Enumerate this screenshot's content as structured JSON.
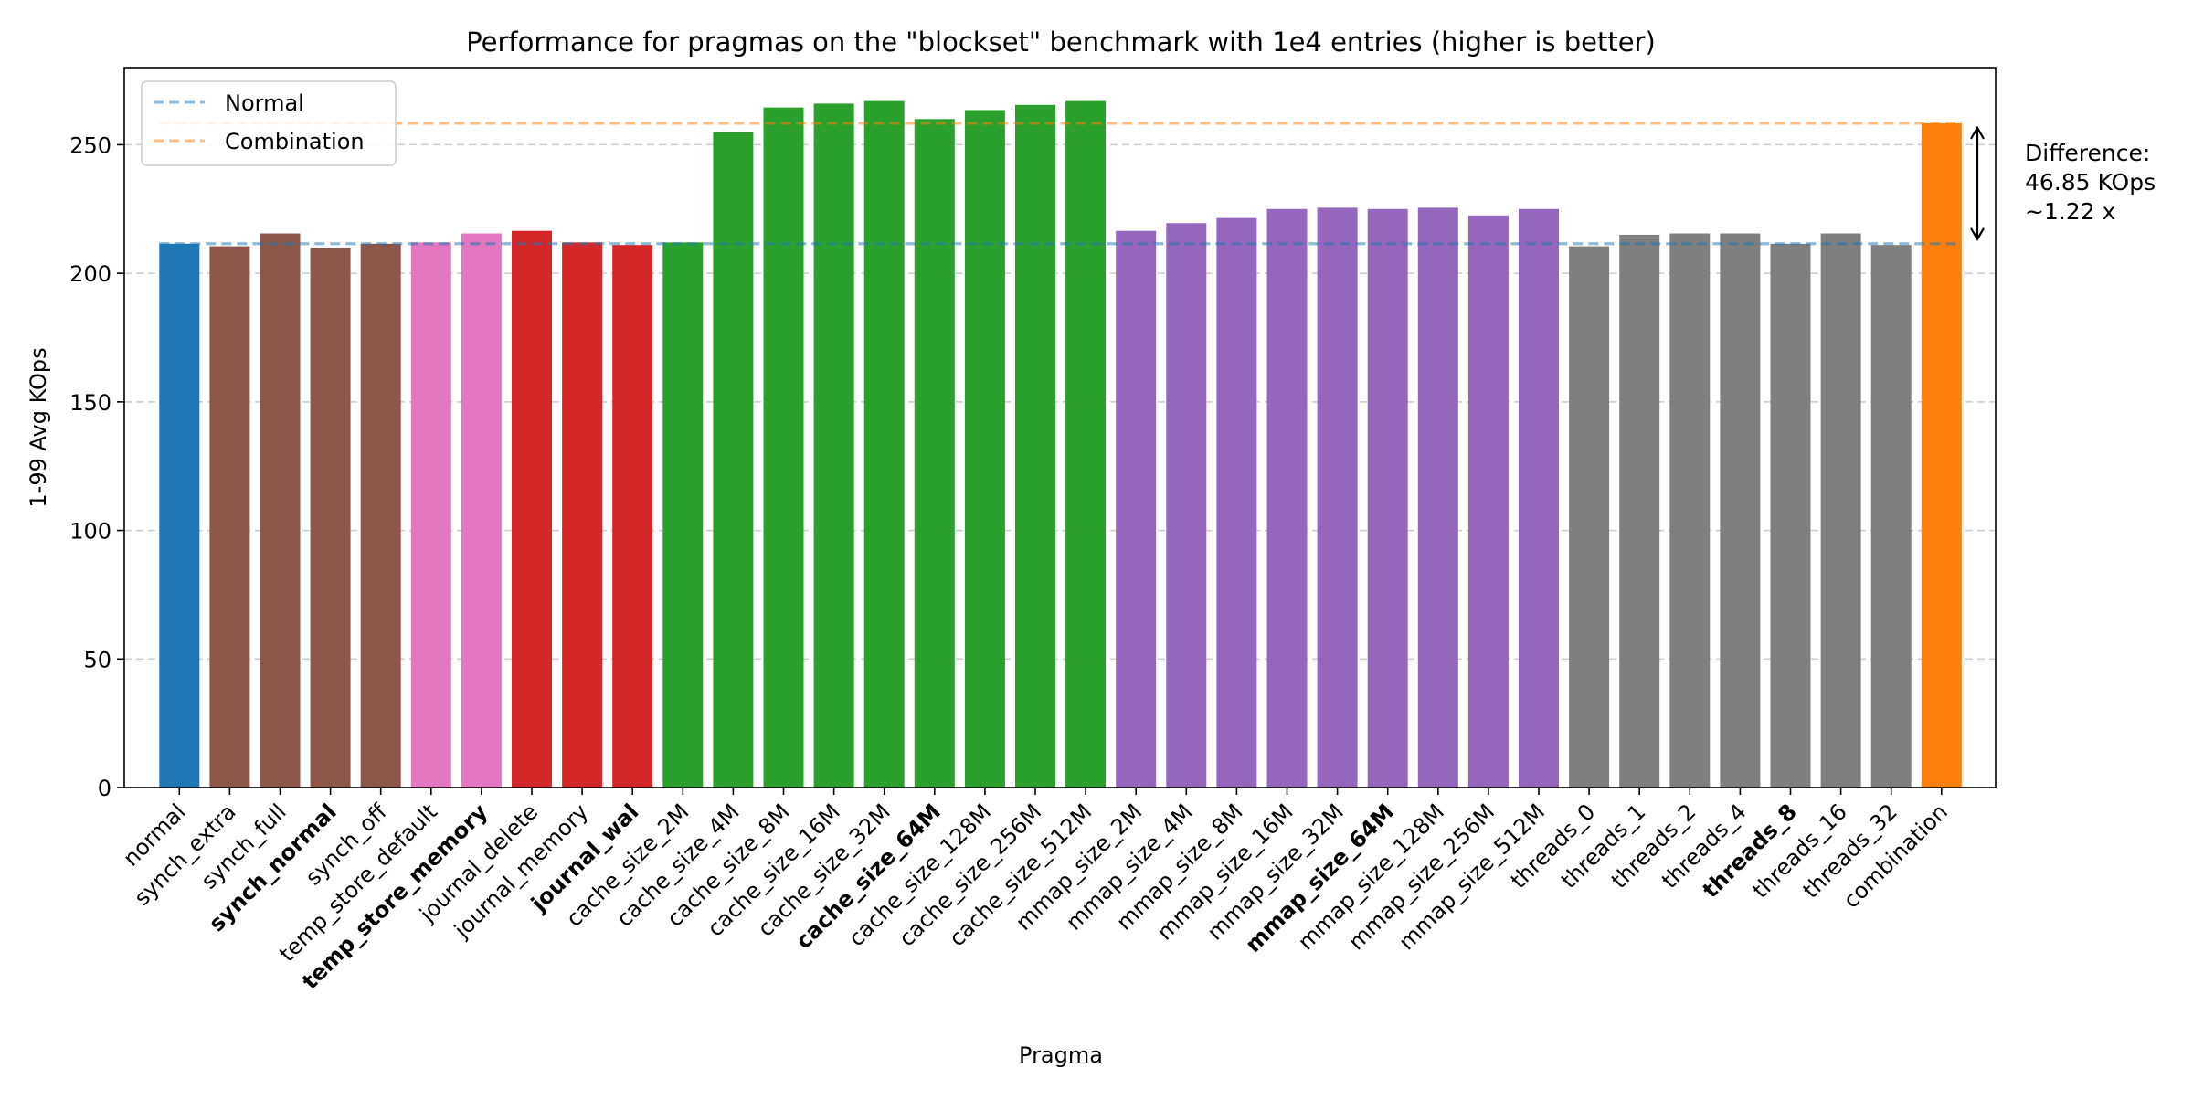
{
  "chart_data": {
    "type": "bar",
    "title": "Performance for pragmas on the \"blockset\" benchmark with 1e4 entries (higher is better)",
    "xlabel": "Pragma",
    "ylabel": "1-99 Avg KOps",
    "ylim": [
      0,
      280
    ],
    "yticks": [
      0,
      50,
      100,
      150,
      200,
      250
    ],
    "grid": "y-dashed",
    "legend_position": "top-left",
    "categories": [
      "normal",
      "synch_extra",
      "synch_full",
      "synch_normal",
      "synch_off",
      "temp_store_default",
      "temp_store_memory",
      "journal_delete",
      "journal_memory",
      "journal_wal",
      "cache_size_2M",
      "cache_size_4M",
      "cache_size_8M",
      "cache_size_16M",
      "cache_size_32M",
      "cache_size_64M",
      "cache_size_128M",
      "cache_size_256M",
      "cache_size_512M",
      "mmap_size_2M",
      "mmap_size_4M",
      "mmap_size_8M",
      "mmap_size_16M",
      "mmap_size_32M",
      "mmap_size_64M",
      "mmap_size_128M",
      "mmap_size_256M",
      "mmap_size_512M",
      "threads_0",
      "threads_1",
      "threads_2",
      "threads_4",
      "threads_8",
      "threads_16",
      "threads_32",
      "combination"
    ],
    "values": [
      211.5,
      210.5,
      215.5,
      210,
      211.5,
      212,
      215.5,
      216.5,
      212,
      211,
      212,
      255,
      264.5,
      266,
      267,
      260,
      263.5,
      265.5,
      267,
      216.5,
      219.5,
      221.5,
      225,
      225.5,
      225,
      225.5,
      222.5,
      225,
      210.5,
      215,
      215.5,
      215.5,
      211.5,
      215.5,
      211,
      258.35
    ],
    "bar_colors": [
      "#1f77b4",
      "#8c564b",
      "#8c564b",
      "#8c564b",
      "#8c564b",
      "#e377c2",
      "#e377c2",
      "#d62728",
      "#d62728",
      "#d62728",
      "#2ca02c",
      "#2ca02c",
      "#2ca02c",
      "#2ca02c",
      "#2ca02c",
      "#2ca02c",
      "#2ca02c",
      "#2ca02c",
      "#2ca02c",
      "#9467bd",
      "#9467bd",
      "#9467bd",
      "#9467bd",
      "#9467bd",
      "#9467bd",
      "#9467bd",
      "#9467bd",
      "#9467bd",
      "#7f7f7f",
      "#7f7f7f",
      "#7f7f7f",
      "#7f7f7f",
      "#7f7f7f",
      "#7f7f7f",
      "#7f7f7f",
      "#ff7f0e"
    ],
    "bold_categories": [
      "synch_normal",
      "temp_store_memory",
      "journal_wal",
      "cache_size_64M",
      "mmap_size_64M",
      "threads_8"
    ],
    "reference_lines": [
      {
        "name": "Normal",
        "value": 211.5,
        "color": "#1f77b4",
        "style": "dashed"
      },
      {
        "name": "Combination",
        "value": 258.35,
        "color": "#ff7f0e",
        "style": "dashed"
      }
    ],
    "annotation": {
      "lines": [
        "Difference:",
        "46.85 KOps",
        "~1.22 x"
      ],
      "from": 211.5,
      "to": 258.35
    }
  }
}
